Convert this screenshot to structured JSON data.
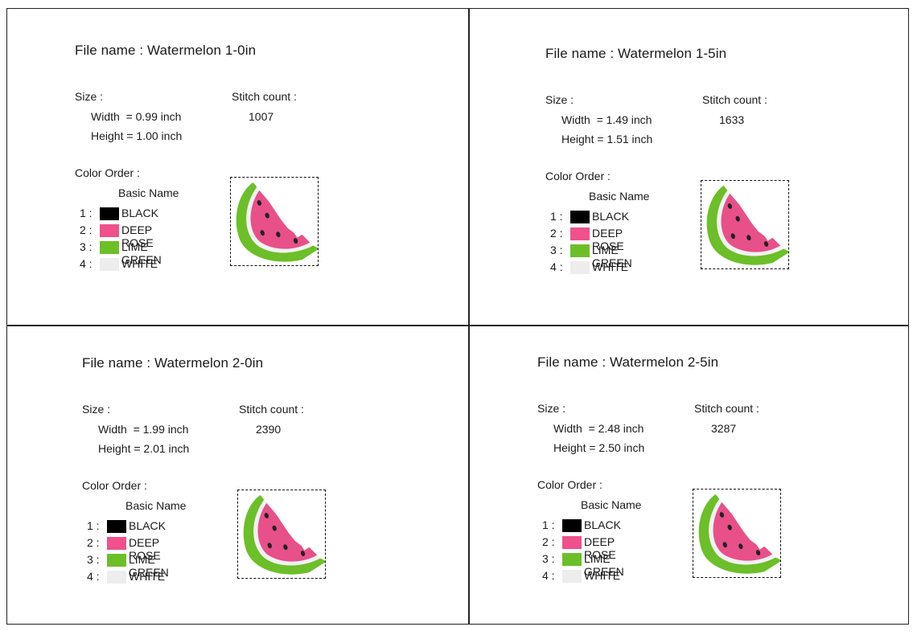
{
  "panels": [
    {
      "file_name": "File name : Watermelon 1-0in",
      "size_label": "Size :",
      "width": "Width  = 0.99 inch",
      "height": "Height = 1.00 inch",
      "stitch_label": "Stitch count :",
      "stitch_count": "1007",
      "color_order_label": "Color Order :",
      "basic_name_label": "Basic Name",
      "colors": [
        {
          "num": "1 :",
          "name": "BLACK",
          "hex": "#000000"
        },
        {
          "num": "2 :",
          "name": "DEEP ROSE",
          "hex": "#f0508c"
        },
        {
          "num": "3 :",
          "name": "LIME GREEN",
          "hex": "#6cbf28"
        },
        {
          "num": "4 :",
          "name": "WHITE",
          "hex": "#ededed"
        }
      ]
    },
    {
      "file_name": "File name : Watermelon 1-5in",
      "size_label": "Size :",
      "width": "Width  = 1.49 inch",
      "height": "Height = 1.51 inch",
      "stitch_label": "Stitch count :",
      "stitch_count": "1633",
      "color_order_label": "Color Order :",
      "basic_name_label": "Basic Name",
      "colors": [
        {
          "num": "1 :",
          "name": "BLACK",
          "hex": "#000000"
        },
        {
          "num": "2 :",
          "name": "DEEP ROSE",
          "hex": "#f0508c"
        },
        {
          "num": "3 :",
          "name": "LIME GREEN",
          "hex": "#6cbf28"
        },
        {
          "num": "4 :",
          "name": "WHITE",
          "hex": "#ededed"
        }
      ]
    },
    {
      "file_name": "File name : Watermelon 2-0in",
      "size_label": "Size :",
      "width": "Width  = 1.99 inch",
      "height": "Height = 2.01 inch",
      "stitch_label": "Stitch count :",
      "stitch_count": "2390",
      "color_order_label": "Color Order :",
      "basic_name_label": "Basic Name",
      "colors": [
        {
          "num": "1 :",
          "name": "BLACK",
          "hex": "#000000"
        },
        {
          "num": "2 :",
          "name": "DEEP ROSE",
          "hex": "#f0508c"
        },
        {
          "num": "3 :",
          "name": "LIME GREEN",
          "hex": "#6cbf28"
        },
        {
          "num": "4 :",
          "name": "WHITE",
          "hex": "#ededed"
        }
      ]
    },
    {
      "file_name": "File name : Watermelon 2-5in",
      "size_label": "Size :",
      "width": "Width  = 2.48 inch",
      "height": "Height = 2.50 inch",
      "stitch_label": "Stitch count :",
      "stitch_count": "3287",
      "color_order_label": "Color Order :",
      "basic_name_label": "Basic Name",
      "colors": [
        {
          "num": "1 :",
          "name": "BLACK",
          "hex": "#000000"
        },
        {
          "num": "2 :",
          "name": "DEEP ROSE",
          "hex": "#f0508c"
        },
        {
          "num": "3 :",
          "name": "LIME GREEN",
          "hex": "#6cbf28"
        },
        {
          "num": "4 :",
          "name": "WHITE",
          "hex": "#ededed"
        }
      ]
    }
  ],
  "icons": {
    "thumbnail": "watermelon-slice-icon"
  }
}
